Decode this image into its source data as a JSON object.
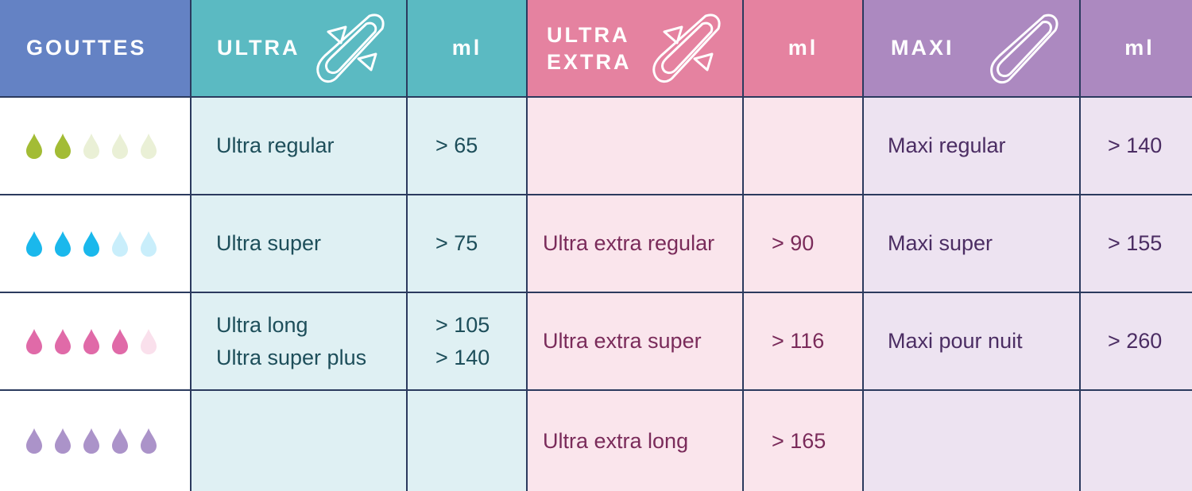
{
  "header": {
    "gouttes": "GOUTTES",
    "ultra": "ULTRA",
    "ultra_ml": "ml",
    "ultra_extra_line1": "ULTRA",
    "ultra_extra_line2": "EXTRA",
    "ultra_extra_ml": "ml",
    "maxi": "MAXI",
    "maxi_ml": "ml",
    "icons": [
      "pad-with-wings-icon",
      "pad-with-wings-icon",
      "maxi-pad-icon"
    ]
  },
  "colors": {
    "gouttes_header": "#6482c4",
    "ultra_header": "#5bbac2",
    "ultra_extra_header": "#e582a0",
    "maxi_header": "#ac89c0",
    "drop_rows": [
      {
        "full": "#a3bc35",
        "empty": "#eaf0d6"
      },
      {
        "full": "#1ab8ec",
        "empty": "#c9eefb"
      },
      {
        "full": "#e06aa8",
        "empty": "#fae0ec"
      },
      {
        "full": "#ab93c9",
        "empty": "#e6def0"
      }
    ]
  },
  "rows": [
    {
      "drops_filled": 2,
      "drops_total": 5,
      "ultra": [
        "Ultra regular"
      ],
      "ultra_ml": [
        "> 65"
      ],
      "ultra_extra": [],
      "ultra_extra_ml": [],
      "maxi": [
        "Maxi regular"
      ],
      "maxi_ml": [
        "> 140"
      ]
    },
    {
      "drops_filled": 3,
      "drops_total": 5,
      "ultra": [
        "Ultra super"
      ],
      "ultra_ml": [
        "> 75"
      ],
      "ultra_extra": [
        "Ultra extra regular"
      ],
      "ultra_extra_ml": [
        "> 90"
      ],
      "maxi": [
        "Maxi super"
      ],
      "maxi_ml": [
        "> 155"
      ]
    },
    {
      "drops_filled": 4,
      "drops_total": 5,
      "ultra": [
        "Ultra long",
        "Ultra super plus"
      ],
      "ultra_ml": [
        "> 105",
        "> 140"
      ],
      "ultra_extra": [
        "Ultra extra super"
      ],
      "ultra_extra_ml": [
        "> 116"
      ],
      "maxi": [
        "Maxi pour nuit"
      ],
      "maxi_ml": [
        "> 260"
      ]
    },
    {
      "drops_filled": 5,
      "drops_total": 5,
      "ultra": [],
      "ultra_ml": [],
      "ultra_extra": [
        "Ultra extra long"
      ],
      "ultra_extra_ml": [
        "> 165"
      ],
      "maxi": [],
      "maxi_ml": []
    }
  ]
}
